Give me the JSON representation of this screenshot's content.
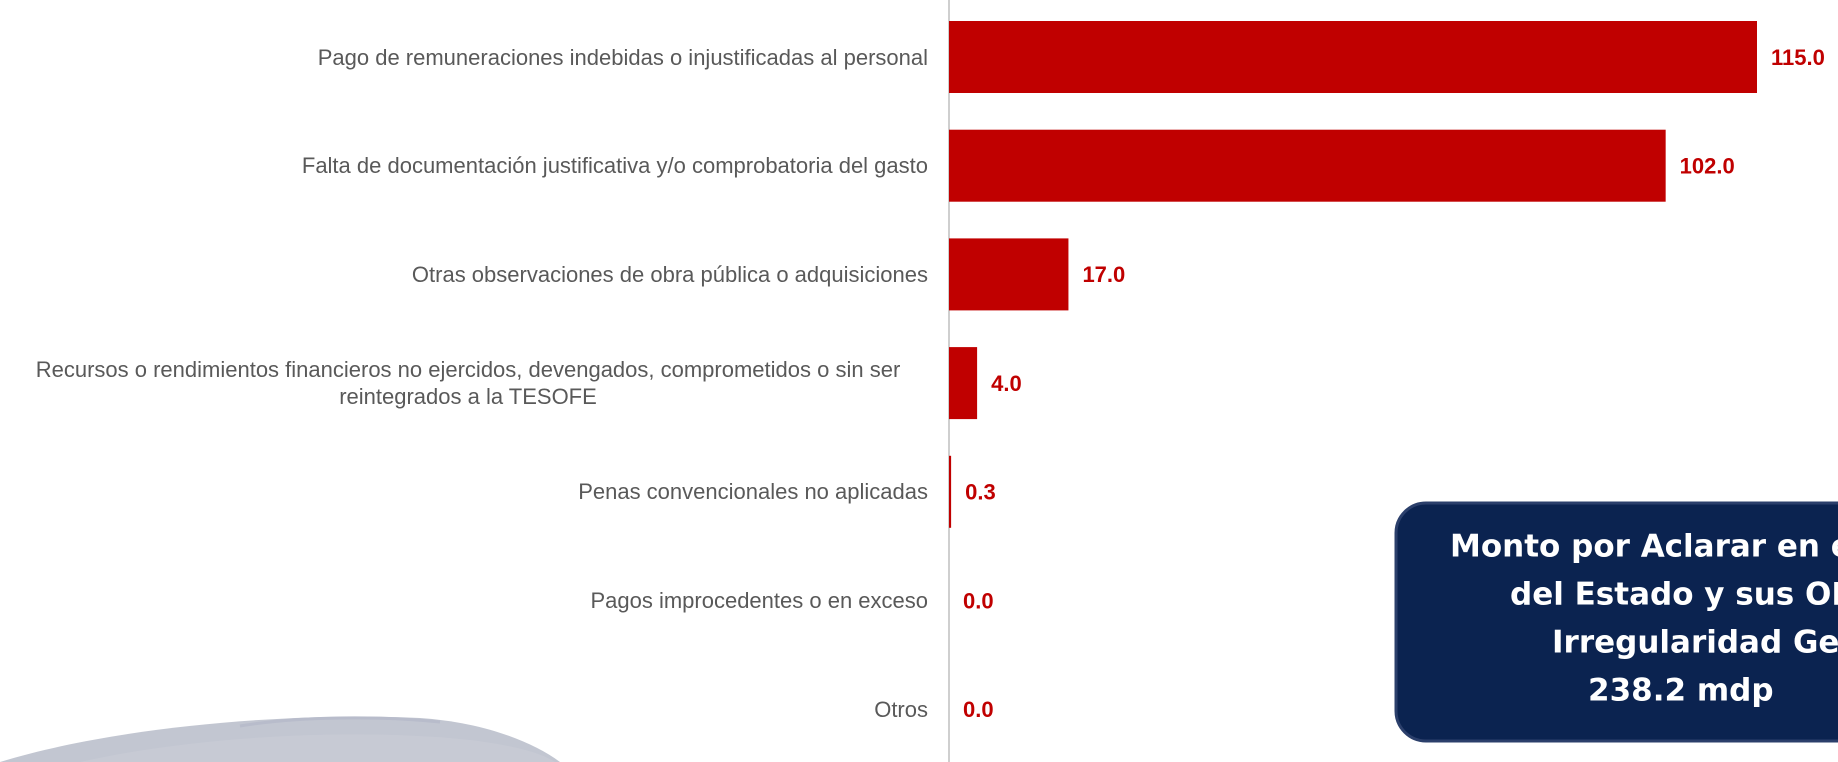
{
  "chart_data": {
    "type": "bar",
    "orientation": "horizontal",
    "categories": [
      "Pago de remuneraciones indebidas o injustificadas al personal",
      "Falta de documentación justificativa y/o comprobatoria del gasto",
      "Otras observaciones de obra pública o adquisiciones",
      "Recursos o rendimientos financieros no ejercidos, devengados, comprometidos o sin ser reintegrados a la TESOFE",
      "Penas convencionales no aplicadas",
      "Pagos improcedentes o en exceso",
      "Otros"
    ],
    "values": [
      115.0,
      102.0,
      17.0,
      4.0,
      0.3,
      0.0,
      0.0
    ],
    "value_labels": [
      "115.0",
      "102.0",
      "17.0",
      "4.0",
      "0.3",
      "0.0",
      "0.0"
    ],
    "color": "#c00000",
    "annotation": [
      "Monto por Aclarar en e",
      "del Estado y sus OF",
      "Irregularidad Gen",
      "238.2 mdp"
    ]
  }
}
